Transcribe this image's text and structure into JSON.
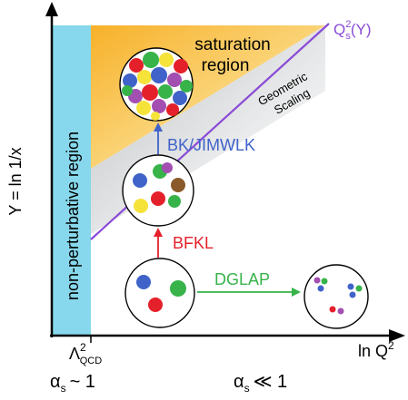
{
  "axes": {
    "y_label": "Y = ln 1/x",
    "x_label": "ln Q",
    "x_label_sup": "2",
    "lambda_tick": "Λ",
    "lambda_sup": "2",
    "lambda_sub": "QCD",
    "alpha_left": "α",
    "alpha_left_sub": "s",
    "alpha_left_rel": "~ 1",
    "alpha_right": "α",
    "alpha_right_sub": "s",
    "alpha_right_rel": "≪ 1"
  },
  "regions": {
    "non_perturbative": "non-perturbative region",
    "saturation_line1": "saturation",
    "saturation_line2": "region",
    "geometric_line1": "Geometric",
    "geometric_line2": "Scaling"
  },
  "saturation_line_label": {
    "q": "Q",
    "sup": "2",
    "sub": "s",
    "arg": "(Y)"
  },
  "evolution": {
    "bk": "BK/JIMWLK",
    "bfkl": "BFKL",
    "dglap": "DGLAP"
  },
  "colors": {
    "nonpert_fill": "#87d8ec",
    "saturation_fill": "#f7b833",
    "saturation_line": "#8a4bd6",
    "bk_text": "#3f63c9",
    "bfkl_text": "#e4212b",
    "dglap_text": "#37b34a",
    "axis": "#000000"
  }
}
